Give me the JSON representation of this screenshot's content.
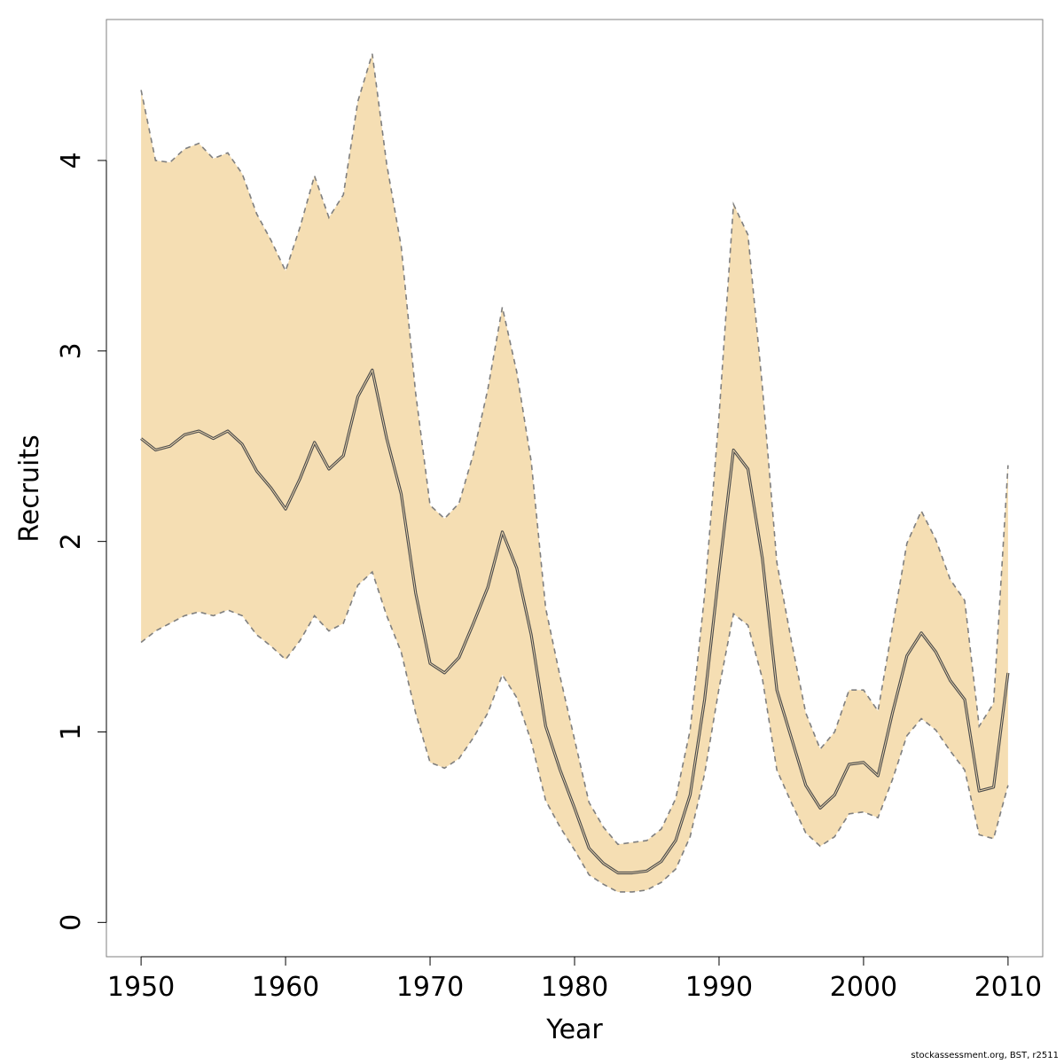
{
  "chart_data": {
    "type": "area",
    "xlabel": "Year",
    "ylabel": "Recruits",
    "xlim": [
      1947.6,
      2012.4
    ],
    "ylim": [
      -0.18,
      4.74
    ],
    "x_ticks": [
      1950,
      1960,
      1970,
      1980,
      1990,
      2000,
      2010
    ],
    "y_ticks": [
      0,
      1,
      2,
      3,
      4
    ],
    "grid": false,
    "legend": "none",
    "colors": {
      "band": "#f5deb3",
      "median": "#4d4d4d",
      "bounds": "#7f7f7f",
      "frame": "#808080"
    },
    "x": [
      1950,
      1951,
      1952,
      1953,
      1954,
      1955,
      1956,
      1957,
      1958,
      1959,
      1960,
      1961,
      1962,
      1963,
      1964,
      1965,
      1966,
      1967,
      1968,
      1969,
      1970,
      1971,
      1972,
      1973,
      1974,
      1975,
      1976,
      1977,
      1978,
      1979,
      1980,
      1981,
      1982,
      1983,
      1984,
      1985,
      1986,
      1987,
      1988,
      1989,
      1990,
      1991,
      1992,
      1993,
      1994,
      1995,
      1996,
      1997,
      1998,
      1999,
      2000,
      2001,
      2002,
      2003,
      2004,
      2005,
      2006,
      2007,
      2008,
      2009,
      2010
    ],
    "series": [
      {
        "role": "median",
        "values": [
          2.54,
          2.48,
          2.5,
          2.56,
          2.58,
          2.54,
          2.58,
          2.51,
          2.37,
          2.28,
          2.17,
          2.33,
          2.52,
          2.38,
          2.45,
          2.76,
          2.9,
          2.54,
          2.25,
          1.73,
          1.36,
          1.31,
          1.39,
          1.57,
          1.76,
          2.05,
          1.86,
          1.51,
          1.03,
          0.8,
          0.6,
          0.39,
          0.31,
          0.26,
          0.26,
          0.27,
          0.32,
          0.43,
          0.67,
          1.17,
          1.84,
          2.48,
          2.38,
          1.91,
          1.22,
          0.97,
          0.72,
          0.6,
          0.67,
          0.83,
          0.84,
          0.77,
          1.1,
          1.4,
          1.52,
          1.42,
          1.27,
          1.17,
          0.69,
          0.71,
          1.31
        ]
      },
      {
        "role": "upper",
        "values": [
          4.37,
          4.0,
          3.99,
          4.06,
          4.09,
          4.01,
          4.04,
          3.93,
          3.72,
          3.58,
          3.42,
          3.65,
          3.92,
          3.7,
          3.82,
          4.31,
          4.56,
          3.98,
          3.55,
          2.78,
          2.19,
          2.12,
          2.2,
          2.46,
          2.8,
          3.23,
          2.89,
          2.42,
          1.65,
          1.29,
          0.96,
          0.63,
          0.5,
          0.41,
          0.42,
          0.43,
          0.49,
          0.65,
          1.01,
          1.72,
          2.66,
          3.77,
          3.61,
          2.81,
          1.89,
          1.48,
          1.1,
          0.91,
          1.0,
          1.22,
          1.22,
          1.11,
          1.55,
          1.99,
          2.16,
          2.01,
          1.8,
          1.69,
          1.03,
          1.15,
          2.4
        ]
      },
      {
        "role": "lower",
        "values": [
          1.47,
          1.53,
          1.57,
          1.61,
          1.63,
          1.61,
          1.64,
          1.61,
          1.51,
          1.45,
          1.38,
          1.48,
          1.61,
          1.53,
          1.57,
          1.77,
          1.84,
          1.61,
          1.42,
          1.1,
          0.84,
          0.81,
          0.86,
          0.97,
          1.1,
          1.3,
          1.18,
          0.95,
          0.64,
          0.5,
          0.38,
          0.25,
          0.2,
          0.16,
          0.16,
          0.17,
          0.21,
          0.28,
          0.45,
          0.78,
          1.23,
          1.62,
          1.56,
          1.28,
          0.8,
          0.63,
          0.47,
          0.4,
          0.45,
          0.57,
          0.58,
          0.55,
          0.75,
          0.98,
          1.07,
          1.01,
          0.9,
          0.8,
          0.46,
          0.44,
          0.72
        ]
      }
    ]
  },
  "footnote": "stockassessment.org, BST, r2511"
}
